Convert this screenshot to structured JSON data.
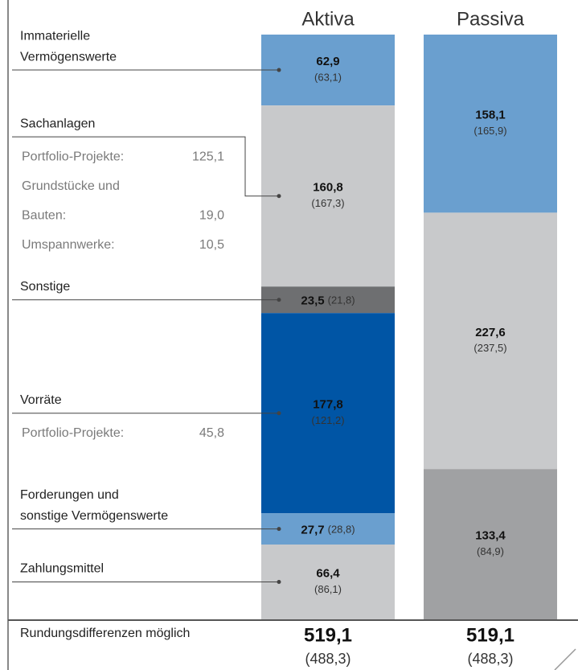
{
  "chart_data": {
    "type": "stacked-bar",
    "footnote": "Rundungsdifferenzen möglich",
    "stacks": [
      {
        "name": "Aktiva",
        "total": 519.1,
        "total_label": "519,1",
        "total_prior": 488.3,
        "total_prior_label": "(488,3)",
        "segments": [
          {
            "label": [
              "Immaterielle",
              "Vermögenswerte"
            ],
            "value": 62.9,
            "value_label": "62,9",
            "prior": 63.1,
            "prior_label": "(63,1)",
            "color": "#6a9fcf"
          },
          {
            "label": [
              "Sachanlagen"
            ],
            "value": 160.8,
            "value_label": "160,8",
            "prior": 167.3,
            "prior_label": "(167,3)",
            "color": "#c8c9cb",
            "items": [
              {
                "label": "Portfolio-Projekte:",
                "amount": "125,1"
              },
              {
                "label": "Grundstücke und",
                "amount": ""
              },
              {
                "label": "Bauten:",
                "amount": "19,0"
              },
              {
                "label": "Umspannwerke:",
                "amount": "10,5"
              }
            ]
          },
          {
            "label": [
              "Sonstige"
            ],
            "value": 23.5,
            "value_label": "23,5",
            "prior": 21.8,
            "prior_label": "(21,8)",
            "color": "#6e6f71"
          },
          {
            "label": [
              "Vorräte"
            ],
            "value": 177.8,
            "value_label": "177,8",
            "prior": 121.2,
            "prior_label": "(121,2)",
            "color": "#0055a5",
            "items": [
              {
                "label": "Portfolio-Projekte:",
                "amount": "45,8"
              }
            ]
          },
          {
            "label": [
              "Forderungen und",
              "sonstige Vermögenswerte"
            ],
            "value": 27.7,
            "value_label": "27,7",
            "prior": 28.8,
            "prior_label": "(28,8)",
            "color": "#6a9fcf"
          },
          {
            "label": [
              "Zahlungsmittel"
            ],
            "value": 66.4,
            "value_label": "66,4",
            "prior": 86.1,
            "prior_label": "(86,1)",
            "color": "#c8c9cb"
          }
        ]
      },
      {
        "name": "Passiva",
        "total": 519.1,
        "total_label": "519,1",
        "total_prior": 488.3,
        "total_prior_label": "(488,3)",
        "segments": [
          {
            "value": 158.1,
            "value_label": "158,1",
            "prior": 165.9,
            "prior_label": "(165,9)",
            "color": "#6a9fcf"
          },
          {
            "value": 227.6,
            "value_label": "227,6",
            "prior": 237.5,
            "prior_label": "(237,5)",
            "color": "#c8c9cb"
          },
          {
            "value": 133.4,
            "value_label": "133,4",
            "prior": 84.9,
            "prior_label": "(84,9)",
            "color": "#a0a1a3"
          }
        ]
      }
    ]
  }
}
